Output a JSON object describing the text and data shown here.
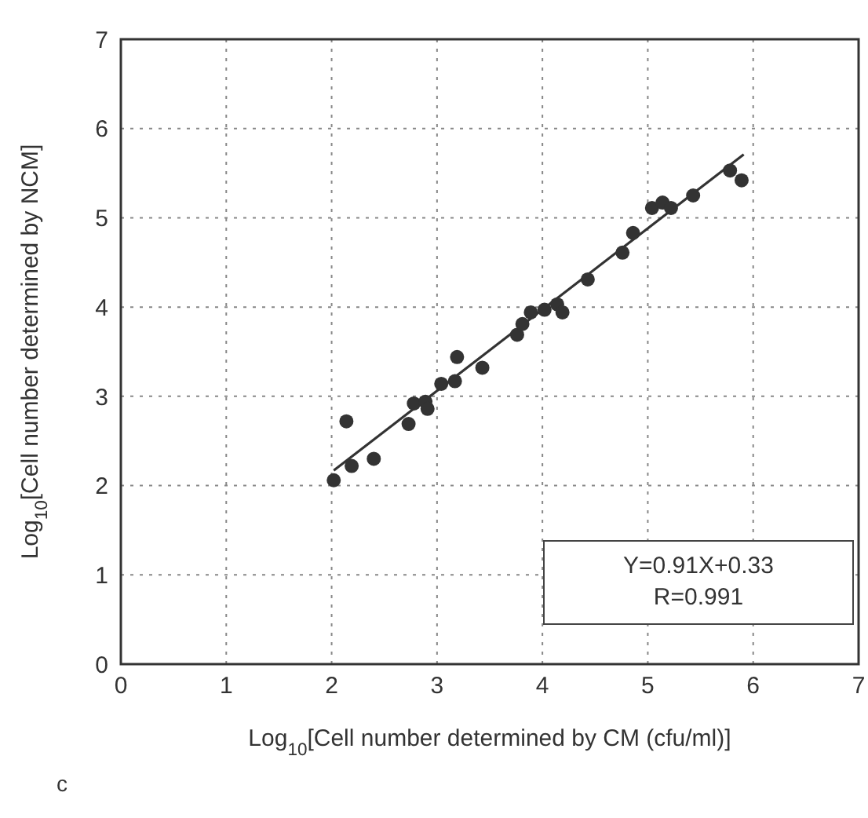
{
  "chart_data": {
    "type": "scatter",
    "xlabel": "Log$_{10}$[Cell number determined by CM (cfu/ml)]",
    "ylabel": "Log$_{10}$[Cell number determined by NCM]",
    "xlim": [
      0,
      7
    ],
    "ylim": [
      0,
      7
    ],
    "xticks": [
      0,
      1,
      2,
      3,
      4,
      5,
      6,
      7
    ],
    "yticks": [
      0,
      1,
      2,
      3,
      4,
      5,
      6,
      7
    ],
    "grid": true,
    "marker": "circle",
    "series": [
      {
        "color": "#333333",
        "x": [
          2.02,
          2.14,
          2.19,
          2.4,
          2.73,
          2.78,
          2.89,
          2.91,
          3.04,
          3.17,
          3.19,
          3.43,
          3.76,
          3.81,
          3.89,
          4.02,
          4.14,
          4.19,
          4.43,
          4.76,
          4.86,
          5.04,
          5.14,
          5.22,
          5.43,
          5.78,
          5.89
        ],
        "values": [
          2.06,
          2.72,
          2.22,
          2.3,
          2.69,
          2.92,
          2.94,
          2.86,
          3.14,
          3.17,
          3.44,
          3.32,
          3.69,
          3.81,
          3.94,
          3.97,
          4.03,
          3.94,
          4.31,
          4.61,
          4.83,
          5.11,
          5.17,
          5.11,
          5.25,
          5.53,
          5.42
        ]
      },
      {
        "type": "line",
        "color": "#333333",
        "x": [
          2.02,
          5.91
        ],
        "values": [
          2.17,
          5.71
        ],
        "marker": "none",
        "line_style": "solid"
      }
    ],
    "annotations": [
      "Y=0.91X+0.33",
      "R=0.991",
      "c"
    ]
  }
}
